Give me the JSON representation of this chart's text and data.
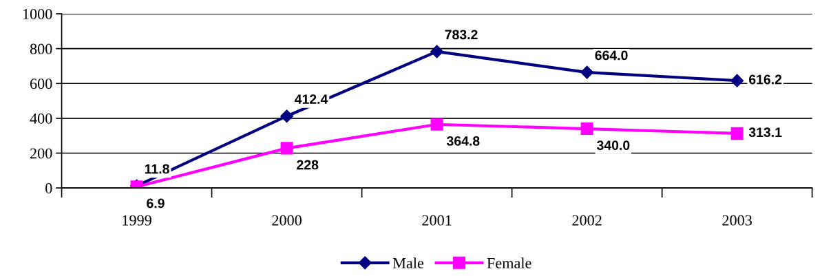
{
  "chart_data": {
    "type": "line",
    "categories": [
      "1999",
      "2000",
      "2001",
      "2002",
      "2003"
    ],
    "series": [
      {
        "name": "Male",
        "color": "#000080",
        "marker": "diamond",
        "values": [
          11.8,
          412.4,
          783.2,
          664.0,
          616.2
        ],
        "value_labels": [
          "11.8",
          "412.4",
          "783.2",
          "664.0",
          "616.2"
        ]
      },
      {
        "name": "Female",
        "color": "#ff00ff",
        "marker": "square",
        "values": [
          6.9,
          228,
          364.8,
          340.0,
          313.1
        ],
        "value_labels": [
          "6.9",
          "228",
          "364.8",
          "340.0",
          "313.1"
        ]
      }
    ],
    "ylim": [
      0,
      1000
    ],
    "yticks": [
      0,
      200,
      400,
      600,
      800,
      1000
    ],
    "grid": "y",
    "legend": "bottom",
    "line_style": "solid"
  }
}
